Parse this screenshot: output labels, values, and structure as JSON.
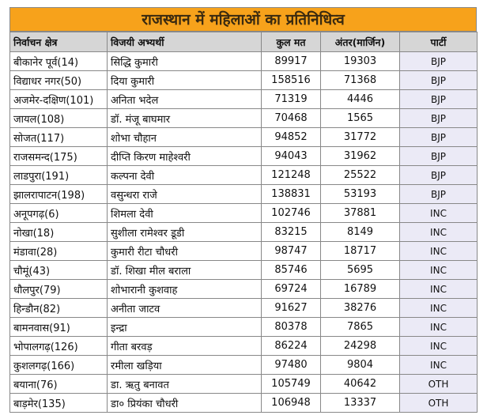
{
  "title": "राजस्थान में महिलाओं का प्रतिनिधित्व",
  "table": {
    "header": [
      "निर्वाचन क्षेत्र",
      "विजयी अभ्यर्थी",
      "कुल मत",
      "अंतर(मार्जिन)",
      "पार्टी"
    ],
    "rows": [
      [
        "बीकानेर पूर्व(14)",
        "सिद्धि कुमारी",
        89917,
        19303,
        "BJP"
      ],
      [
        "विद्याधर नगर(50)",
        "दिया कुमारी",
        158516,
        71368,
        "BJP"
      ],
      [
        "अजमेर-दक्षिण(101)",
        "अनिता भदेल",
        71319,
        4446,
        "BJP"
      ],
      [
        "जायल(108)",
        "डॉ. मंजू बाघमार",
        70468,
        1565,
        "BJP"
      ],
      [
        "सोजत(117)",
        "शोभा चौहान",
        94852,
        31772,
        "BJP"
      ],
      [
        "राजसमन्द(175)",
        "दीप्ति किरण माहेश्वरी",
        94043,
        31962,
        "BJP"
      ],
      [
        "लाडपुरा(191)",
        "कल्पना देवी",
        121248,
        25522,
        "BJP"
      ],
      [
        "झालरापाटन(198)",
        "वसुन्धरा राजे",
        138831,
        53193,
        "BJP"
      ],
      [
        "अनूपगढ़(6)",
        "शिमला देवी",
        102746,
        37881,
        "INC"
      ],
      [
        "नोखा(18)",
        "सुशीला रामेश्वर डूडी",
        83215,
        8149,
        "INC"
      ],
      [
        "मंडावा(28)",
        "कुमारी रीटा चौधरी",
        98747,
        18717,
        "INC"
      ],
      [
        "चौमूं(43)",
        "डॉ. शिखा मील बराला",
        85746,
        5695,
        "INC"
      ],
      [
        "धौलपुर(79)",
        "शोभारानी कुशवाह",
        69724,
        16789,
        "INC"
      ],
      [
        "हिन्डौन(82)",
        "अनीता जाटव",
        91627,
        38276,
        "INC"
      ],
      [
        "बामनवास(91)",
        "इन्द्रा",
        80378,
        7865,
        "INC"
      ],
      [
        "भोपालगढ़(126)",
        "गीता बरवड़",
        86224,
        24298,
        "INC"
      ],
      [
        "कुशलगढ़(166)",
        "रमीला खड़िया",
        97480,
        9804,
        "INC"
      ],
      [
        "बयाना(76)",
        "डा. ऋतु बनावत",
        105749,
        40642,
        "OTH"
      ],
      [
        "बाड़मेर(135)",
        "डा० प्रियंका चौधरी",
        106948,
        13337,
        "OTH"
      ]
    ]
  }
}
